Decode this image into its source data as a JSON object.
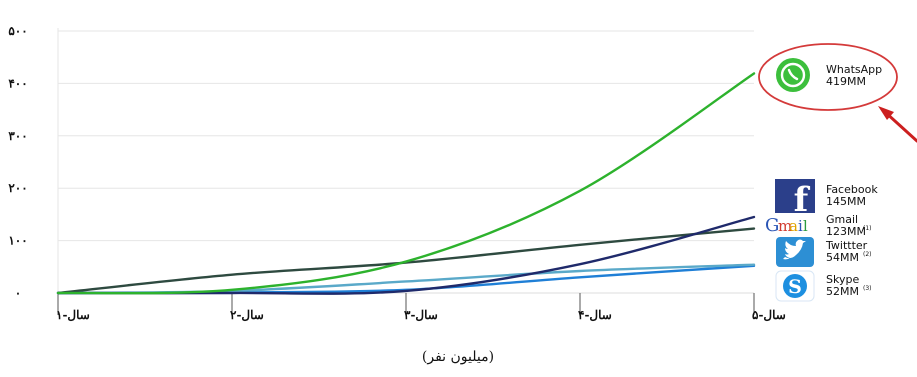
{
  "chart_data": {
    "type": "line",
    "caption": "(میلیون نفر)",
    "x": [
      "سال-۱",
      "سال-۲",
      "سال-۳",
      "سال-۴",
      "سال-۵"
    ],
    "ylim": [
      0,
      500
    ],
    "yticks": [
      "٠",
      "١٠٠",
      "٢٠٠",
      "٣٠٠",
      "۴٠٠",
      "۵٠٠"
    ],
    "ytick_values": [
      0,
      100,
      200,
      300,
      400,
      500
    ],
    "grid": true,
    "legend_position": "right",
    "series": [
      {
        "name": "WhatsApp",
        "value_label": "419MM",
        "sup": "",
        "color": "#2db22d",
        "icon": "whatsapp-icon",
        "highlighted": true,
        "values": [
          0,
          6,
          60,
          195,
          419
        ]
      },
      {
        "name": "Facebook",
        "value_label": "145MM",
        "sup": "",
        "color": "#1f2a6b",
        "icon": "facebook-icon",
        "highlighted": false,
        "values": [
          0,
          0,
          4,
          55,
          145
        ]
      },
      {
        "name": "Gmail",
        "value_label": "123MM",
        "sup": "(1)",
        "color": "#2e4a40",
        "icon": "gmail-icon",
        "highlighted": false,
        "values": [
          0,
          35,
          58,
          92,
          123
        ]
      },
      {
        "name": "Twittter",
        "value_label": "54MM",
        "sup": "(2)",
        "color": "#5aa9c9",
        "icon": "twitter-icon",
        "highlighted": false,
        "values": [
          0,
          4,
          22,
          42,
          54
        ]
      },
      {
        "name": "Skype",
        "value_label": "52MM",
        "sup": "(3)",
        "color": "#1f7fd6",
        "icon": "skype-icon",
        "highlighted": false,
        "values": [
          0,
          1,
          6,
          30,
          52
        ]
      }
    ]
  }
}
